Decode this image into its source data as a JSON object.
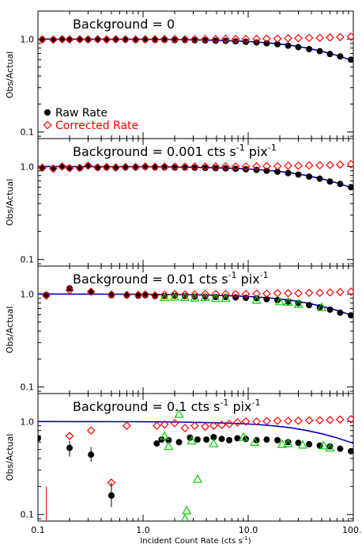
{
  "chart_data": {
    "type": "scatter",
    "x_scale": "log",
    "y_scale": "log",
    "xlim": [
      0.1,
      100
    ],
    "ylim": [
      0.085,
      2.0
    ],
    "xlabel": "Incident Count Rate (cts s",
    "xlabel_sup": "-1",
    "xlabel_end": ")",
    "ylabel": "Obs/Actual",
    "x_ticks": [
      {
        "value": 0.1,
        "label": "0.1"
      },
      {
        "value": 1,
        "label": "1.0"
      },
      {
        "value": 10,
        "label": "10.0"
      },
      {
        "value": 100,
        "label": "100.0"
      }
    ],
    "y_ticks": [
      {
        "value": 0.1,
        "label": "0.1"
      },
      {
        "value": 1,
        "label": "1.0"
      }
    ],
    "legend": {
      "placement": "lower-left of top panel",
      "entries": [
        {
          "name": "Raw Rate",
          "marker": "filled-circle",
          "color": "#000000"
        },
        {
          "name": "Corrected Rate",
          "marker": "open-diamond",
          "color": "#ff0000"
        }
      ]
    },
    "colors": {
      "raw": "#000000",
      "corrected": "#ff0000",
      "model_curve": "#0000cc",
      "triangles": "#00cc00",
      "errorbar": "#ff0000"
    },
    "panels": [
      {
        "title_parts": [
          "Background = 0"
        ],
        "raw_x": [
          0.11,
          0.14,
          0.17,
          0.2,
          0.25,
          0.3,
          0.37,
          0.45,
          0.55,
          0.68,
          0.85,
          1.05,
          1.3,
          1.6,
          2.0,
          2.5,
          3.1,
          3.9,
          4.9,
          6.1,
          7.6,
          9.5,
          12,
          15,
          19,
          24,
          30,
          38,
          48,
          60,
          75,
          95
        ],
        "raw_y": [
          0.99,
          0.985,
          0.995,
          0.99,
          0.99,
          0.985,
          0.99,
          0.985,
          0.99,
          0.985,
          0.98,
          0.985,
          0.98,
          0.98,
          0.975,
          0.975,
          0.97,
          0.965,
          0.96,
          0.955,
          0.945,
          0.935,
          0.92,
          0.9,
          0.88,
          0.85,
          0.82,
          0.78,
          0.74,
          0.69,
          0.65,
          0.6
        ],
        "corrected_x": [
          0.11,
          0.14,
          0.17,
          0.2,
          0.25,
          0.3,
          0.37,
          0.45,
          0.55,
          0.68,
          0.85,
          1.05,
          1.3,
          1.6,
          2.0,
          2.5,
          3.1,
          3.9,
          4.9,
          6.1,
          7.6,
          9.5,
          12,
          15,
          19,
          24,
          30,
          38,
          48,
          60,
          75,
          95
        ],
        "corrected_y": [
          0.99,
          0.985,
          0.995,
          0.99,
          0.995,
          0.99,
          0.995,
          0.99,
          0.995,
          0.995,
          0.99,
          0.995,
          0.995,
          1.0,
          1.0,
          0.995,
          1.0,
          1.0,
          1.0,
          1.005,
          1.0,
          1.0,
          1.005,
          1.01,
          1.01,
          1.02,
          1.02,
          1.03,
          1.03,
          1.04,
          1.05,
          1.06
        ],
        "triangles_x": [],
        "triangles_y": [],
        "model_x": [
          0.1,
          0.2,
          0.5,
          1,
          2,
          3,
          5,
          8,
          12,
          18,
          25,
          35,
          50,
          70,
          100
        ],
        "model_y": [
          1.0,
          0.999,
          0.997,
          0.994,
          0.988,
          0.982,
          0.97,
          0.953,
          0.93,
          0.896,
          0.858,
          0.807,
          0.74,
          0.667,
          0.584
        ]
      },
      {
        "title_parts": [
          "Background = 0.001 cts s",
          "-1",
          " pix",
          "-1"
        ],
        "raw_x": [
          0.11,
          0.14,
          0.17,
          0.2,
          0.25,
          0.3,
          0.37,
          0.45,
          0.55,
          0.68,
          0.85,
          1.05,
          1.3,
          1.6,
          2.0,
          2.5,
          3.1,
          3.9,
          4.9,
          6.1,
          7.6,
          9.5,
          12,
          15,
          19,
          24,
          30,
          38,
          48,
          60,
          75,
          95
        ],
        "raw_y": [
          0.97,
          0.95,
          1.0,
          0.96,
          0.96,
          1.02,
          0.97,
          0.98,
          0.97,
          0.98,
          0.98,
          0.99,
          0.98,
          0.98,
          0.975,
          0.975,
          0.97,
          0.965,
          0.96,
          0.955,
          0.945,
          0.935,
          0.92,
          0.9,
          0.88,
          0.85,
          0.82,
          0.78,
          0.74,
          0.69,
          0.65,
          0.6
        ],
        "corrected_x": [
          0.11,
          0.14,
          0.17,
          0.2,
          0.25,
          0.3,
          0.37,
          0.45,
          0.55,
          0.68,
          0.85,
          1.05,
          1.3,
          1.6,
          2.0,
          2.5,
          3.1,
          3.9,
          4.9,
          6.1,
          7.6,
          9.5,
          12,
          15,
          19,
          24,
          30,
          38,
          48,
          60,
          75,
          95
        ],
        "corrected_y": [
          0.97,
          0.95,
          1.0,
          0.96,
          0.97,
          1.02,
          0.98,
          0.99,
          0.98,
          0.99,
          0.99,
          1.0,
          0.995,
          1.0,
          1.0,
          0.995,
          1.0,
          1.0,
          1.0,
          1.005,
          1.0,
          1.0,
          1.005,
          1.01,
          1.01,
          1.02,
          1.02,
          1.03,
          1.03,
          1.04,
          1.05,
          1.06
        ],
        "triangles_x": [],
        "triangles_y": [],
        "model_x": [
          0.1,
          0.2,
          0.5,
          1,
          2,
          3,
          5,
          8,
          12,
          18,
          25,
          35,
          50,
          70,
          100
        ],
        "model_y": [
          1.0,
          0.999,
          0.997,
          0.994,
          0.988,
          0.982,
          0.97,
          0.953,
          0.93,
          0.896,
          0.858,
          0.807,
          0.74,
          0.667,
          0.584
        ]
      },
      {
        "title_parts": [
          "Background = 0.01 cts s",
          "-1",
          " pix",
          "-1"
        ],
        "raw_x": [
          0.12,
          0.2,
          0.32,
          0.5,
          0.7,
          0.9,
          1.05,
          1.3,
          1.6,
          2.0,
          2.5,
          3.1,
          3.9,
          4.9,
          6.1,
          7.6,
          9.5,
          12,
          15,
          19,
          24,
          30,
          38,
          48,
          60,
          75,
          95
        ],
        "raw_y": [
          0.98,
          1.15,
          1.05,
          0.97,
          0.97,
          0.96,
          0.97,
          0.95,
          0.95,
          0.96,
          0.95,
          0.94,
          0.94,
          0.93,
          0.93,
          0.92,
          0.91,
          0.9,
          0.88,
          0.86,
          0.83,
          0.8,
          0.76,
          0.72,
          0.68,
          0.63,
          0.59
        ],
        "corrected_x": [
          0.12,
          0.2,
          0.32,
          0.5,
          0.7,
          0.9,
          1.05,
          1.3,
          1.6,
          2.0,
          2.5,
          3.1,
          3.9,
          4.9,
          6.1,
          7.6,
          9.5,
          12,
          15,
          19,
          24,
          30,
          38,
          48,
          60,
          75,
          95
        ],
        "corrected_y": [
          0.96,
          1.1,
          1.06,
          0.99,
          0.98,
          0.98,
          0.99,
          0.97,
          0.98,
          1.0,
          0.99,
          0.99,
          1.0,
          1.0,
          1.0,
          1.0,
          1.0,
          1.01,
          1.01,
          1.02,
          1.02,
          1.02,
          1.03,
          1.03,
          1.04,
          1.05,
          1.06
        ],
        "triangles_x": [
          1.6,
          2.0,
          2.5,
          3.1,
          3.9,
          4.9,
          6.1,
          12,
          20,
          24,
          30,
          50
        ],
        "triangles_y": [
          0.92,
          0.93,
          0.92,
          0.91,
          0.92,
          0.9,
          0.9,
          0.86,
          0.83,
          0.82,
          0.78,
          0.72
        ],
        "model_x": [
          0.1,
          0.2,
          0.5,
          1,
          2,
          3,
          5,
          8,
          12,
          18,
          25,
          35,
          50,
          70,
          100
        ],
        "model_y": [
          1.0,
          0.999,
          0.997,
          0.994,
          0.988,
          0.982,
          0.97,
          0.953,
          0.93,
          0.896,
          0.858,
          0.807,
          0.74,
          0.667,
          0.584
        ]
      },
      {
        "title_parts": [
          "Background = 0.1 cts s",
          "-1",
          " pix",
          "-1"
        ],
        "raw_x": [
          0.1,
          0.2,
          0.32,
          0.5,
          1.35,
          1.5,
          1.75,
          2.2,
          2.8,
          3.3,
          4.0,
          4.7,
          5.6,
          6.6,
          7.9,
          9.5,
          12,
          15,
          19,
          24,
          30,
          38,
          48,
          60,
          75,
          95
        ],
        "raw_y": [
          0.66,
          0.52,
          0.44,
          0.16,
          0.58,
          0.64,
          0.63,
          0.6,
          0.67,
          0.64,
          0.64,
          0.68,
          0.65,
          0.63,
          0.66,
          0.65,
          0.63,
          0.64,
          0.63,
          0.6,
          0.59,
          0.57,
          0.55,
          0.54,
          0.51,
          0.48
        ],
        "corrected_x": [
          0.2,
          0.32,
          0.5,
          0.7,
          1.35,
          1.6,
          2.0,
          2.5,
          3.1,
          3.9,
          4.7,
          5.6,
          6.6,
          7.9,
          9.5,
          12,
          15,
          19,
          24,
          30,
          38,
          48,
          60,
          75,
          95
        ],
        "corrected_y": [
          0.7,
          0.8,
          0.22,
          0.9,
          0.9,
          0.93,
          0.96,
          0.85,
          0.9,
          0.88,
          0.9,
          0.92,
          0.94,
          0.98,
          1.0,
          1.0,
          1.01,
          1.02,
          1.02,
          1.02,
          1.03,
          1.03,
          1.04,
          1.05,
          1.06
        ],
        "triangles_x": [
          1.6,
          1.75,
          2.2,
          2.5,
          2.6,
          2.9,
          3.3,
          4.7,
          9.0,
          11.5,
          21,
          24,
          33,
          52,
          60
        ],
        "triangles_y": [
          0.7,
          0.54,
          1.2,
          0.09,
          0.11,
          0.62,
          0.24,
          0.58,
          0.68,
          0.6,
          0.57,
          0.58,
          0.56,
          0.55,
          0.52
        ],
        "model_x": [
          0.1,
          0.2,
          0.5,
          1,
          2,
          3,
          5,
          8,
          12,
          18,
          25,
          35,
          50,
          70,
          100
        ],
        "model_y": [
          1.0,
          0.999,
          0.997,
          0.994,
          0.988,
          0.982,
          0.97,
          0.953,
          0.93,
          0.896,
          0.858,
          0.807,
          0.74,
          0.667,
          0.584
        ]
      }
    ]
  }
}
